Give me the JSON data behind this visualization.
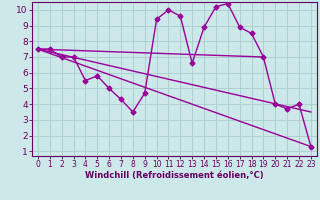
{
  "xlabel": "Windchill (Refroidissement éolien,°C)",
  "ylabel": "",
  "bg_color": "#cce8e8",
  "line_color": "#990099",
  "grid_color": "#aacccc",
  "axis_label_color": "#660066",
  "tick_color": "#660066",
  "xlim": [
    -0.5,
    23.5
  ],
  "ylim": [
    0.7,
    10.5
  ],
  "yticks": [
    1,
    2,
    3,
    4,
    5,
    6,
    7,
    8,
    9,
    10
  ],
  "xticks": [
    0,
    1,
    2,
    3,
    4,
    5,
    6,
    7,
    8,
    9,
    10,
    11,
    12,
    13,
    14,
    15,
    16,
    17,
    18,
    19,
    20,
    21,
    22,
    23
  ],
  "series1_x": [
    0,
    1,
    2,
    3,
    4,
    5,
    6,
    7,
    8,
    9,
    10,
    11,
    12,
    13,
    14,
    15,
    16,
    17,
    18,
    19,
    20,
    21,
    22,
    23
  ],
  "series1_y": [
    7.5,
    7.5,
    7.0,
    7.0,
    5.5,
    5.8,
    5.0,
    4.3,
    3.5,
    4.7,
    9.4,
    10.0,
    9.6,
    6.6,
    8.9,
    10.2,
    10.4,
    8.9,
    8.5,
    7.0,
    4.0,
    3.7,
    4.0,
    1.3
  ],
  "series2_x": [
    0,
    19
  ],
  "series2_y": [
    7.5,
    7.0
  ],
  "series3_x": [
    0,
    23
  ],
  "series3_y": [
    7.5,
    1.3
  ],
  "series4_x": [
    0,
    23
  ],
  "series4_y": [
    7.5,
    3.5
  ],
  "marker": "D",
  "markersize": 2.5,
  "linewidth": 1.0
}
